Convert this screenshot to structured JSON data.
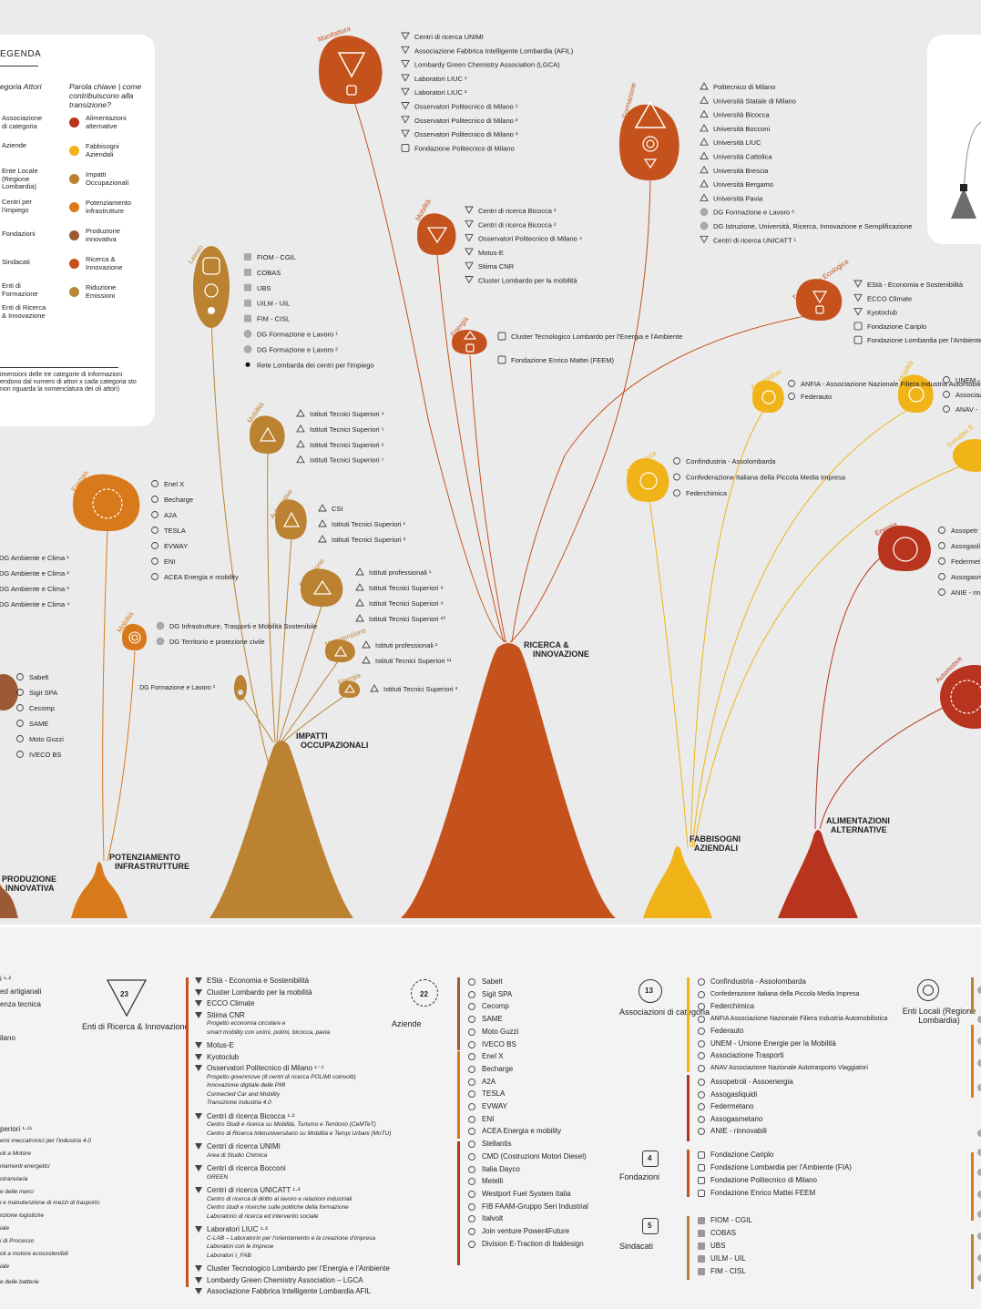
{
  "colors": {
    "background": "#ebebeb",
    "alimentazioni_alternative": "#b8341f",
    "fabbisogni_aziendali": "#f0b318",
    "impatti_occupazionali": "#bb8232",
    "potenziamento_infrastrutture": "#d87a1c",
    "produzione_innovativa": "#9b5a35",
    "ricerca_innovazione": "#c5521c",
    "riduzione_emissioni": "#b58a3a"
  },
  "legend": {
    "title": "EGENDA",
    "actors_header": "egoria Attori",
    "keyword_header": "Parola chiave | come contribuiscono alla transizione?",
    "actors": [
      "Associazione di categoria",
      "Aziende",
      "Ente Locale (Regione Lombardia)",
      "Centri per l'impiego",
      "Fondazioni",
      "Sindacati",
      "Enti di Formazione",
      "Enti di Ricerca & Innovazione"
    ],
    "keywords": [
      {
        "label": "Alimentazioni alternative",
        "color": "#b8341f"
      },
      {
        "label": "Fabbisogni Aziendali",
        "color": "#f0b318"
      },
      {
        "label": "Impatti Occupazionali",
        "color": "#bb8232"
      },
      {
        "label": "Potenziamento infrastrutture",
        "color": "#d87a1c"
      },
      {
        "label": "Produzione innovativa",
        "color": "#9b5a35"
      },
      {
        "label": "Ricerca & Innovazione",
        "color": "#c5521c"
      },
      {
        "label": "Riduzione Emissioni",
        "color": "#b58a3a"
      }
    ],
    "note": "imensioni delle tre categorie di informazioni endono dal numero di attori x cada categoria sto non riguarda la nomenclatura dei oli attori)"
  },
  "mountains": {
    "produzione": "PRODUZIONE INNOVATIVA",
    "potenziamento": "POTENZIAMENTO INFRASTRUTTURE",
    "impatti": "IMPATTI OCCUPAZIONALI",
    "ricerca": "RICERCA & INNOVAZIONE",
    "fabbisogni": "FABBISOGNI AZIENDALI",
    "alimentazioni": "ALIMENTAZIONI ALTERNATIVE"
  },
  "nodes": {
    "manifattura_ri": {
      "label": "Manifattura",
      "items": [
        "Centri di ricerca UNIMI",
        "Associazione Fabbrica Intelligente Lombardia (AFIL)",
        "Lombardy Green Chemistry Association (LGCA)",
        "Laboratori LIUC ¹",
        "Laboratori LIUC ²",
        "Osservatori Politecnico di Milano ¹",
        "Osservatori Politecnico di Milano ²",
        "Osservatori Politecnico di Milano ³",
        "Fondazione Politecnico di Milano"
      ]
    },
    "formazione": {
      "label": "Formazione",
      "items": [
        "Politecnico di Milano",
        "Università Statale di Milano",
        "Università Bicocca",
        "Università Bocconi",
        "Università LIUC",
        "Università Cattolica",
        "Università Brescia",
        "Università Bergamo",
        "Università Pavia",
        "DG Formazione e Lavoro ³",
        "DG Istruzione, Università, Ricerca, Innovazione e Semplificazione",
        "Centri di ricerca UNICATT ¹"
      ]
    },
    "mobilita_ri": {
      "label": "Mobilità",
      "items": [
        "Centri di ricerca Bicocca ¹",
        "Centri di ricerca Bicocca ²",
        "Osservatori Politecnico di Milano ⁴",
        "Motus-E",
        "Stiima CNR",
        "Cluster Lombardo per la mobilità"
      ]
    },
    "energia_ri": {
      "label": "Energia",
      "items": [
        "Cluster Tecnologico Lombardo per l'Energia e l'Ambiente",
        "Fondazione Enrico Mattei (FEEM)"
      ]
    },
    "transizione": {
      "label": "Transizione Ecologica",
      "items": [
        "EStà - Economia e Sostenibilità",
        "ECCO Climate",
        "Kyotoclub",
        "Fondazione Cariplo",
        "Fondazione Lombardia per l'Ambiente"
      ]
    },
    "lavoro": {
      "label": "Lavoro",
      "items": [
        "FIOM - CGIL",
        "COBAS",
        "UBS",
        "UILM - UIL",
        "FIM - CISL",
        "DG Formazione e Lavoro ¹",
        "DG Formazione e Lavoro ²",
        "Rete Lombarda dei centri per l'impiego"
      ]
    },
    "mobilita_io": {
      "label": "Mobilità",
      "items": [
        "Istituti Tecnici Superiori ⁴",
        "Istituti Tecnici Superiori ⁵",
        "Istituti Tecnici Superiori ⁶",
        "Istituti Tecnici Superiori ⁷"
      ]
    },
    "automotive_io": {
      "label": "Automotive",
      "items": [
        "CSI",
        "Istituti Tecnici Superiori ¹",
        "Istituti Tecnici Superiori ²"
      ]
    },
    "produzione_io": {
      "label": "Produzione",
      "items": [
        "Istituti professionali ¹",
        "Istituti Tecnici Superiori ⁸",
        "Istituti Tecnici Superiori ⁹",
        "Istituti Tecnici Superiori ¹⁰"
      ]
    },
    "manutenzione_io": {
      "label": "Manutenzione",
      "items": [
        "Istituti professionali ²",
        "Istituti Tecnici Superiori ¹¹"
      ]
    },
    "energia_io": {
      "label": "Energia",
      "items": [
        "Istituti Tecnici Superiori ³"
      ]
    },
    "dg_io": {
      "items": [
        "DG Formazione e Lavoro ³"
      ]
    },
    "energia_pi": {
      "label": "Energia",
      "items": [
        "Enel X",
        "Becharge",
        "A2A",
        "TESLA",
        "EVWAY",
        "ENI",
        "ACEA Energia e mobility"
      ]
    },
    "mobilita_pi": {
      "label": "Mobilità",
      "items": [
        "DG Infrastrutture, Trasporti e Mobilità Sostenibile",
        "DG Territorio e protezione civile"
      ]
    },
    "dg_ambiente": {
      "items": [
        "DG Ambiente e Clima ¹",
        "DG Ambiente e Clima ²",
        "DG Ambiente e Clima ³",
        "DG Ambiente e Clima ⁴"
      ]
    },
    "produzione_pr": {
      "items": [
        "Sabelt",
        "Sigit SPA",
        "Cecomp",
        "SAME",
        "Moto Guzzi",
        "IVECO BS"
      ]
    },
    "automotive_fa": {
      "label": "Automotive",
      "items": [
        "ANFIA - Associazione Nazionale Filiera Industria Automobilistica",
        "Federauto"
      ]
    },
    "mobilita_fa": {
      "label": "Mobilità",
      "items": [
        "UNEM -",
        "Associaz",
        "ANAV -"
      ]
    },
    "manifattura_fa": {
      "label": "Manifattura",
      "items": [
        "Confindustria - Assolombarda",
        "Confederazione Italiana della Piccola Media Impresa",
        "Federchimica"
      ]
    },
    "sviluppo_fa": {
      "label": "Sviluppo E"
    },
    "energia_al": {
      "label": "Energia",
      "items": [
        "Assopetr",
        "Assogasli",
        "Federmet",
        "Assogasm",
        "ANIE - rin"
      ]
    },
    "automotive_al": {
      "label": "Automotive"
    }
  },
  "bottom": {
    "left_partial": [
      "i ¹·²",
      "ed artigianali",
      "enza tecnica",
      "ilano",
      "periori ¹·¹¹",
      "emi meccatronici per l'industria 4.0",
      "oli a Motore",
      "niamenti energetici",
      "otranviaria",
      "e delle merci",
      "i e manutenzione di mezzi di trasporto",
      "nzione logistiche",
      "iale",
      "i di Processo",
      "oli a motore ecosostenibili",
      "iale",
      "e delle batterie"
    ],
    "enti_ricerca": {
      "count": "23",
      "caption": "Enti di Ricerca & Innovazione"
    },
    "ricerca_list": [
      {
        "t": "EStà - Economia e Sostenibilità"
      },
      {
        "t": "Cluster Lombardo per la mobilità"
      },
      {
        "t": "ECCO Climate"
      },
      {
        "t": "Stiima CNR",
        "sub": [
          "Progetto economia circolare e",
          "smart mobility con unimi, polimi, bicocca, pavia"
        ]
      },
      {
        "t": "Motus-E"
      },
      {
        "t": "Kyotoclub"
      },
      {
        "t": "Osservatori Politecnico di Milano ¹⁻⁴",
        "sub": [
          "Progetto greenmove (8 centri di ricerca POLIMI coinvolti)",
          "Innovazione digitale delle PMI",
          "Connected Car and Mobility",
          "Transizione Industria 4.0"
        ]
      },
      {
        "t": "Centri di ricerca Bicocca ¹·²",
        "sub": [
          "Centro Studi e ricerca su Mobilità, Turismo e Territorio (CeMTeT)",
          "Centro di Ricerca Interuniversitario su Mobilità e Tempi Urbani (MoTU)"
        ]
      },
      {
        "t": "Centri di ricerca UNIMI",
        "sub": [
          "Area di Studio Chimica"
        ]
      },
      {
        "t": "Centri di ricerca Bocconi",
        "sub": [
          "GREEN"
        ]
      },
      {
        "t": "Centri di ricerca UNICATT ¹·³",
        "sub": [
          "Centro di ricerca di diritto al lavoro e relazioni industriali",
          "Centro studi e ricerche sulle politiche della formazione",
          "Laboratorio di ricerca ed intervento sociale"
        ]
      },
      {
        "t": "Laboratori LIUC ¹·³",
        "sub": [
          "C-LAB – Laboratorio per l'orientamento e la creazione d'impresa",
          "Laboratori con le imprese",
          "Laboratori I_FAB"
        ]
      },
      {
        "t": "Cluster Tecnologico Lombardo per l'Energia e l'Ambiente"
      },
      {
        "t": "Lombardy Green Chemistry Association – LGCA"
      },
      {
        "t": "Associazione Fabbrica Intelligente Lombardia AFIL"
      }
    ],
    "aziende": {
      "count": "22",
      "caption": "Aziende"
    },
    "aziende_list": [
      "Sabelt",
      "Sigit SPA",
      "Cecomp",
      "SAME",
      "Moto Guzzi",
      "IVECO BS",
      "Enel X",
      "Becharge",
      "A2A",
      "TESLA",
      "EVWAY",
      "ENI",
      "ACEA Energia e mobility",
      "Stellantis",
      "CMD (Costruzioni Motori Diesel)",
      "Italia Dayco",
      "Metelli",
      "Westport Fuel System Italia",
      "FIB FAAM-Gruppo Seri Industrial",
      "Italvolt",
      "Join venture Power4Future",
      "Division E-Traction di Italdesign"
    ],
    "associazioni": {
      "count": "13",
      "caption": "Associazioni di categoria"
    },
    "associazioni_list": [
      "Confindustria - Assolombarda",
      "Confederazione Italiana della Piccola Media Impresa",
      "Federchimica",
      "ANFIA Associazione Nazionale Filiera Industria Automobilistica",
      "Federauto",
      "UNEM - Unione Energie per la Mobilità",
      "Associazione Trasporti",
      "ANAV Associazione Nazionale Autotrasporto Viaggiatori",
      "Assopetroli - Assoenergia",
      "Assogasliquidi",
      "Federmetano",
      "Assogasmetano",
      "ANIE - rinnovabili"
    ],
    "fondazioni": {
      "count": "4",
      "caption": "Fondazioni"
    },
    "fondazioni_list": [
      "Fondazione Cariplo",
      "Fondazione Lombardia per l'Ambiente (FIA)",
      "Fondazione Politecnico di Milano",
      "Fondazione Enrico Mattei FEEM"
    ],
    "sindacati": {
      "count": "5",
      "caption": "Sindacati"
    },
    "sindacati_list": [
      "FIOM - CGIL",
      "COBAS",
      "UBS",
      "UILM - UIL",
      "FIM - CISL"
    ],
    "enti_locali": {
      "caption": "Enti Locali (Regione Lombardia)"
    }
  }
}
